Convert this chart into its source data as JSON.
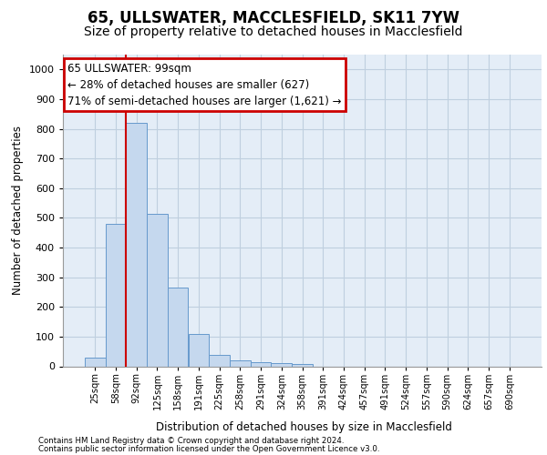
{
  "title_line1": "65, ULLSWATER, MACCLESFIELD, SK11 7YW",
  "title_line2": "Size of property relative to detached houses in Macclesfield",
  "xlabel": "Distribution of detached houses by size in Macclesfield",
  "ylabel": "Number of detached properties",
  "bar_labels": [
    "25sqm",
    "58sqm",
    "92sqm",
    "125sqm",
    "158sqm",
    "191sqm",
    "225sqm",
    "258sqm",
    "291sqm",
    "324sqm",
    "358sqm",
    "391sqm",
    "424sqm",
    "457sqm",
    "491sqm",
    "524sqm",
    "557sqm",
    "590sqm",
    "624sqm",
    "657sqm",
    "690sqm"
  ],
  "bar_values": [
    28,
    480,
    820,
    515,
    265,
    110,
    38,
    20,
    13,
    10,
    8,
    0,
    0,
    0,
    0,
    0,
    0,
    0,
    0,
    0,
    0
  ],
  "bar_color": "#c5d8ee",
  "bar_edge_color": "#6699cc",
  "annotation_text": "65 ULLSWATER: 99sqm\n← 28% of detached houses are smaller (627)\n71% of semi-detached houses are larger (1,621) →",
  "annotation_box_facecolor": "#ffffff",
  "annotation_box_edgecolor": "#cc0000",
  "ylim": [
    0,
    1050
  ],
  "yticks": [
    0,
    100,
    200,
    300,
    400,
    500,
    600,
    700,
    800,
    900,
    1000
  ],
  "grid_color": "#bfcfdf",
  "axes_bg_color": "#e4edf7",
  "red_line_color": "#cc0000",
  "title_fontsize": 12,
  "subtitle_fontsize": 10,
  "footer_line1": "Contains HM Land Registry data © Crown copyright and database right 2024.",
  "footer_line2": "Contains public sector information licensed under the Open Government Licence v3.0.",
  "property_sqm": 99
}
